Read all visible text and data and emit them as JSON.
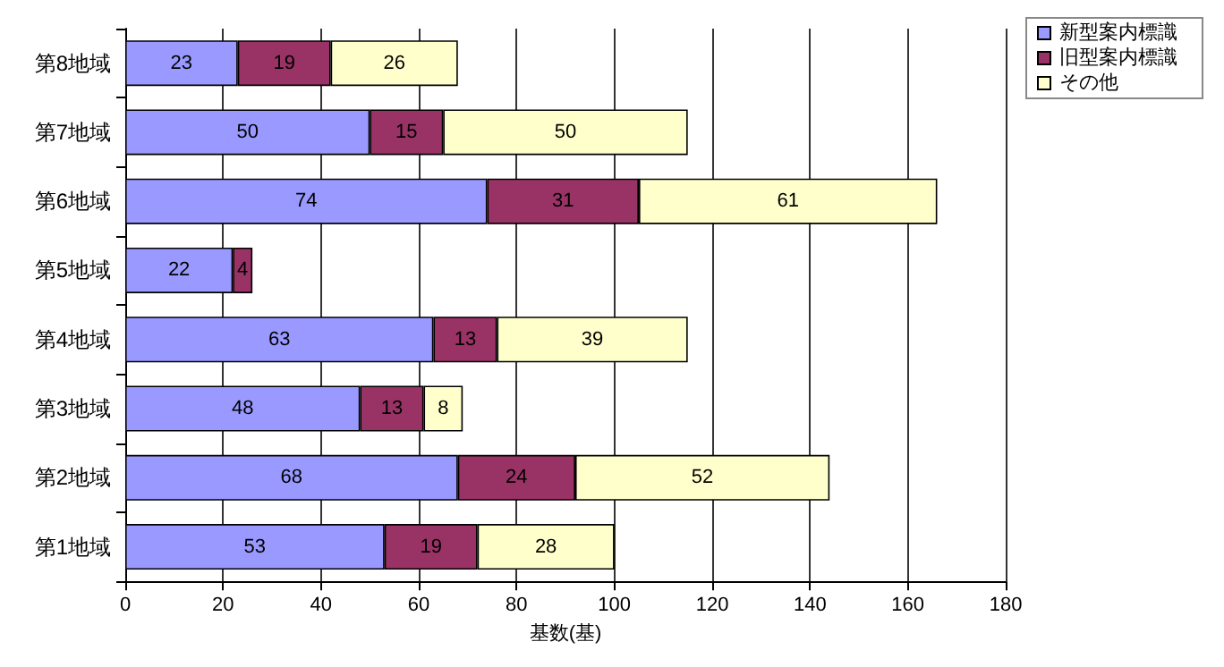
{
  "chart_data": {
    "type": "bar",
    "orientation": "horizontal",
    "stacked": true,
    "xlabel": "基数(基)",
    "categories": [
      "第8地域",
      "第7地域",
      "第6地域",
      "第5地域",
      "第4地域",
      "第3地域",
      "第2地域",
      "第1地域"
    ],
    "series": [
      {
        "name": "新型案内標識",
        "color": "#9999ff",
        "values": [
          23,
          50,
          74,
          22,
          63,
          48,
          68,
          53
        ]
      },
      {
        "name": "旧型案内標識",
        "color": "#993366",
        "values": [
          19,
          15,
          31,
          4,
          13,
          13,
          24,
          19
        ]
      },
      {
        "name": "その他",
        "color": "#ffffcc",
        "values": [
          26,
          50,
          61,
          null,
          39,
          8,
          52,
          28
        ]
      }
    ],
    "xlim": [
      0,
      180
    ],
    "xticks": [
      0,
      20,
      40,
      60,
      80,
      100,
      120,
      140,
      160,
      180
    ],
    "grid": "x",
    "legend": "top right",
    "data_labels": true
  }
}
